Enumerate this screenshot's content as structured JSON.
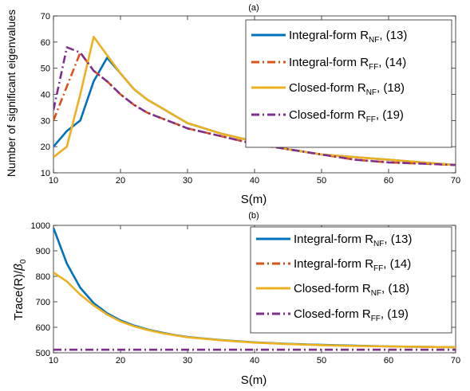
{
  "chart_data": [
    {
      "type": "line",
      "title": "(a)",
      "xlabel": "S(m)",
      "ylabel": "Number of significant eigenvalues",
      "xlim": [
        10,
        70
      ],
      "ylim": [
        10,
        70
      ],
      "xticks": [
        10,
        20,
        30,
        40,
        50,
        60,
        70
      ],
      "yticks": [
        10,
        20,
        30,
        40,
        50,
        60,
        70
      ],
      "grid": false,
      "legend_position": "top-right",
      "series": [
        {
          "name_main": "Integral-form R",
          "name_sub": "NF",
          "name_tail": ", (13)",
          "color": "#0072BD",
          "dash": "solid",
          "x": [
            10,
            12,
            14,
            16,
            18,
            20,
            22,
            24,
            26,
            28,
            30,
            35,
            40,
            45,
            50,
            55,
            60,
            65,
            70
          ],
          "y": [
            20,
            26,
            30,
            45,
            54,
            48,
            42,
            38,
            35,
            32,
            29,
            25,
            22,
            19,
            17,
            16,
            15,
            14,
            13
          ]
        },
        {
          "name_main": "Integral-form R",
          "name_sub": "FF",
          "name_tail": ", (14)",
          "color": "#D95319",
          "dash": "dashdot",
          "x": [
            10,
            12,
            14,
            16,
            18,
            20,
            22,
            24,
            26,
            28,
            30,
            35,
            40,
            45,
            50,
            55,
            60,
            65,
            70
          ],
          "y": [
            30,
            43,
            56,
            49,
            45,
            40,
            36,
            33,
            31,
            29,
            27,
            24,
            21,
            19,
            17,
            15,
            14,
            13.5,
            13
          ]
        },
        {
          "name_main": "Closed-form R",
          "name_sub": "NF",
          "name_tail": ", (18)",
          "color": "#EDB120",
          "dash": "solid",
          "x": [
            10,
            12,
            14,
            16,
            18,
            20,
            22,
            24,
            26,
            28,
            30,
            35,
            40,
            45,
            50,
            55,
            60,
            65,
            70
          ],
          "y": [
            16,
            20,
            40,
            62,
            55,
            48,
            42,
            38,
            35,
            32,
            29,
            25,
            22,
            19,
            17,
            16,
            15,
            14,
            13
          ]
        },
        {
          "name_main": "Closed-form R",
          "name_sub": "FF",
          "name_tail": ", (19)",
          "color": "#7E2F8E",
          "dash": "dashdot",
          "x": [
            10,
            12,
            14,
            16,
            18,
            20,
            22,
            24,
            26,
            28,
            30,
            35,
            40,
            45,
            50,
            55,
            60,
            65,
            70
          ],
          "y": [
            34,
            58,
            56,
            49,
            45,
            40,
            36,
            33,
            31,
            29,
            27,
            24,
            21,
            19,
            17,
            15,
            14,
            13.5,
            13
          ]
        }
      ]
    },
    {
      "type": "line",
      "title": "(b)",
      "xlabel": "S(m)",
      "ylabel_main": "Trace(R)/",
      "ylabel_greek": "β",
      "ylabel_sub": "0",
      "xlim": [
        10,
        70
      ],
      "ylim": [
        500,
        1000
      ],
      "xticks": [
        10,
        20,
        30,
        40,
        50,
        60,
        70
      ],
      "yticks": [
        500,
        600,
        700,
        800,
        900,
        1000
      ],
      "grid": false,
      "legend_position": "top-right",
      "series": [
        {
          "name_main": "Integral-form R",
          "name_sub": "NF",
          "name_tail": ", (13)",
          "color": "#0072BD",
          "dash": "solid",
          "x": [
            10,
            12,
            14,
            16,
            18,
            20,
            22,
            24,
            26,
            28,
            30,
            35,
            40,
            45,
            50,
            55,
            60,
            65,
            70
          ],
          "y": [
            990,
            850,
            755,
            695,
            655,
            627,
            607,
            592,
            580,
            570,
            562,
            550,
            541,
            535,
            531,
            528,
            525,
            523,
            522
          ]
        },
        {
          "name_main": "Integral-form R",
          "name_sub": "FF",
          "name_tail": ", (14)",
          "color": "#D95319",
          "dash": "dashdot",
          "x": [
            10,
            70
          ],
          "y": [
            512,
            512
          ]
        },
        {
          "name_main": "Closed-form R",
          "name_sub": "NF",
          "name_tail": ", (18)",
          "color": "#EDB120",
          "dash": "solid",
          "x": [
            10,
            12,
            14,
            16,
            18,
            20,
            22,
            24,
            26,
            28,
            30,
            35,
            40,
            45,
            50,
            55,
            60,
            65,
            70
          ],
          "y": [
            815,
            780,
            728,
            686,
            650,
            623,
            604,
            590,
            578,
            569,
            561,
            549,
            540,
            534,
            530,
            527,
            525,
            523,
            522
          ]
        },
        {
          "name_main": "Closed-form R",
          "name_sub": "FF",
          "name_tail": ", (19)",
          "color": "#7E2F8E",
          "dash": "dashdot",
          "x": [
            10,
            70
          ],
          "y": [
            512,
            512
          ]
        }
      ]
    }
  ]
}
